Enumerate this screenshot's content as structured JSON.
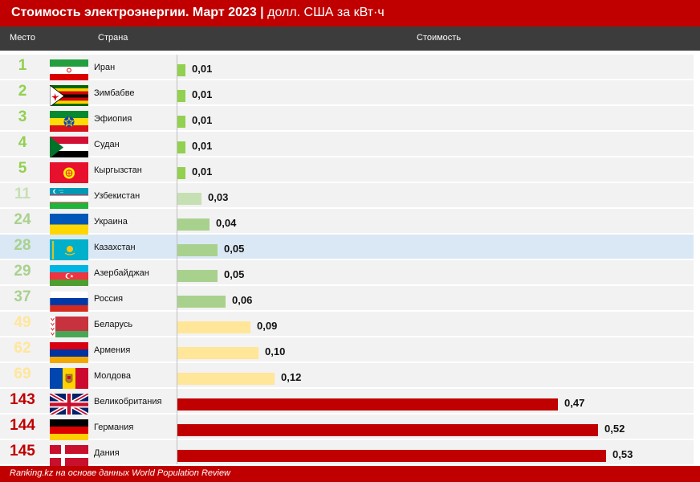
{
  "header": {
    "title": "Стоимость электроэнергии. Март 2023",
    "separator": "|",
    "subtitle": "долл. США за кВт·ч"
  },
  "columns": {
    "rank": "Место",
    "country": "Страна",
    "value": "Стоимость"
  },
  "footer": {
    "source": "Ranking.kz на основе данных World Population Review"
  },
  "colors": {
    "accent": "#c00000",
    "header_dark": "#3c3c3c",
    "row_bg": "#f2f2f2",
    "highlight_row": "#dae8f5",
    "tier_green": "#92d050",
    "tier_light_green": "#c6e0b4",
    "tier_mid_green": "#a9d18e",
    "tier_yellow": "#ffe699",
    "tier_red": "#c00000"
  },
  "chart_data": {
    "type": "bar",
    "orientation": "horizontal",
    "categories": [
      "Иран",
      "Зимбабве",
      "Эфиопия",
      "Судан",
      "Кыргызстан",
      "Узбекистан",
      "Украина",
      "Казахстан",
      "Азербайджан",
      "Россия",
      "Беларусь",
      "Армения",
      "Молдова",
      "Великобритания",
      "Германия",
      "Дания"
    ],
    "ranks": [
      "1",
      "2",
      "3",
      "4",
      "5",
      "11",
      "24",
      "28",
      "29",
      "37",
      "49",
      "62",
      "69",
      "143",
      "144",
      "145"
    ],
    "values": [
      0.01,
      0.01,
      0.01,
      0.01,
      0.01,
      0.03,
      0.04,
      0.05,
      0.05,
      0.06,
      0.09,
      0.1,
      0.12,
      0.47,
      0.52,
      0.53
    ],
    "value_labels": [
      "0,01",
      "0,01",
      "0,01",
      "0,01",
      "0,01",
      "0,03",
      "0,04",
      "0,05",
      "0,05",
      "0,06",
      "0,09",
      "0,10",
      "0,12",
      "0,47",
      "0,52",
      "0,53"
    ],
    "tiers": [
      "green",
      "green",
      "green",
      "green",
      "green",
      "light_green",
      "mid_green",
      "mid_green",
      "mid_green",
      "mid_green",
      "yellow",
      "yellow",
      "yellow",
      "red",
      "red",
      "red"
    ],
    "flags": [
      "iran-flag-icon",
      "zimbabwe-flag-icon",
      "ethiopia-flag-icon",
      "sudan-flag-icon",
      "kyrgyzstan-flag-icon",
      "uzbekistan-flag-icon",
      "ukraine-flag-icon",
      "kazakhstan-flag-icon",
      "azerbaijan-flag-icon",
      "russia-flag-icon",
      "belarus-flag-icon",
      "armenia-flag-icon",
      "moldova-flag-icon",
      "united-kingdom-flag-icon",
      "germany-flag-icon",
      "denmark-flag-icon"
    ],
    "highlighted": "Казахстан",
    "xlim": [
      0,
      0.53
    ],
    "title": "Стоимость электроэнергии. Март 2023",
    "xlabel": "Стоимость",
    "ylabel": "Страна"
  }
}
